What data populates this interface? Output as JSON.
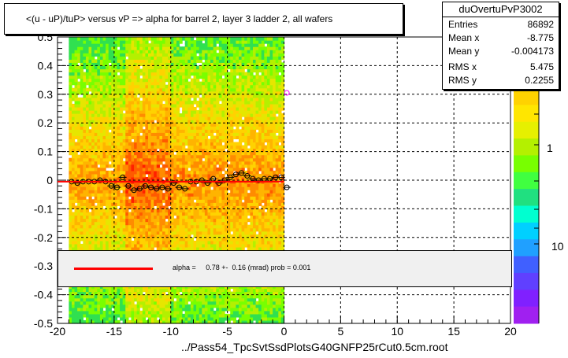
{
  "title": "<(u - uP)/tuP> versus   vP => alpha for barrel 2, layer 3 ladder 2, all wafers",
  "stats": {
    "name": "duOvertuPvP3002",
    "rows": [
      {
        "key": "Entries",
        "value": "86892"
      },
      {
        "key": "Mean x",
        "value": "-8.775"
      },
      {
        "key": "Mean y",
        "value": "-0.004173"
      },
      {
        "key": "RMS x",
        "value": "5.475"
      },
      {
        "key": "RMS y",
        "value": "0.2255"
      }
    ]
  },
  "fit_text": "alpha =     0.78 +-  0.16 (mrad) prob = 0.001",
  "x_title": "../Pass54_TpcSvtSsdPlotsG40GNFP25rCut0.5cm.root",
  "colors": {
    "fit": "#ff0000",
    "marker": "#000000",
    "outlier_marker": "#ff00ff",
    "fit_box": "#f0f0f0"
  },
  "chart_data": {
    "type": "heatmap",
    "xlim": [
      -20,
      20
    ],
    "ylim": [
      -0.5,
      0.5
    ],
    "x_ticks": [
      -20,
      -15,
      -10,
      -5,
      0,
      5,
      10,
      15,
      20
    ],
    "x_tick_labels": [
      "-20",
      "-15",
      "-10",
      "-5",
      "0",
      "5",
      "10",
      "15",
      "20"
    ],
    "y_ticks": [
      -0.5,
      -0.4,
      -0.3,
      -0.2,
      -0.1,
      0,
      0.1,
      0.2,
      0.3,
      0.4,
      0.5
    ],
    "y_tick_labels": [
      "-0.5",
      "-0.4",
      "-0.3",
      "-0.2",
      "-0.1",
      "0",
      "0.1",
      "0.2",
      "0.3",
      "0.4",
      "0.5"
    ],
    "heatmap_x_range": [
      -19,
      0
    ],
    "z_scale": "log",
    "z_labels": [
      "1",
      "10"
    ],
    "grid": true,
    "fit_line": {
      "x": [
        -20,
        0
      ],
      "y": [
        -0.005,
        -0.005
      ]
    },
    "profile_points": {
      "x": [
        -18.75,
        -18.25,
        -17.75,
        -17.25,
        -16.75,
        -16.25,
        -15.75,
        -15.25,
        -14.75,
        -14.25,
        -13.75,
        -13.25,
        -12.75,
        -12.25,
        -11.75,
        -11.25,
        -10.75,
        -10.25,
        -9.75,
        -9.25,
        -8.75,
        -8.25,
        -7.75,
        -7.25,
        -6.75,
        -6.25,
        -5.75,
        -5.25,
        -4.75,
        -4.25,
        -3.75,
        -3.25,
        -2.75,
        -2.25,
        -1.75,
        -1.25,
        -0.75,
        -0.25,
        0.25
      ],
      "y": [
        -0.005,
        -0.01,
        -0.005,
        -0.005,
        -0.005,
        0.0,
        -0.005,
        -0.02,
        -0.025,
        0.01,
        -0.02,
        -0.035,
        -0.03,
        -0.02,
        -0.025,
        -0.03,
        -0.025,
        -0.03,
        -0.01,
        -0.025,
        -0.03,
        -0.005,
        -0.005,
        0.0,
        -0.01,
        0.005,
        -0.01,
        0.0,
        0.01,
        0.02,
        0.025,
        0.015,
        0.005,
        0.0,
        0.005,
        0.005,
        0.01,
        0.01,
        -0.025
      ]
    },
    "outlier_points": {
      "x": [
        0.25
      ],
      "y": [
        0.305
      ]
    }
  }
}
